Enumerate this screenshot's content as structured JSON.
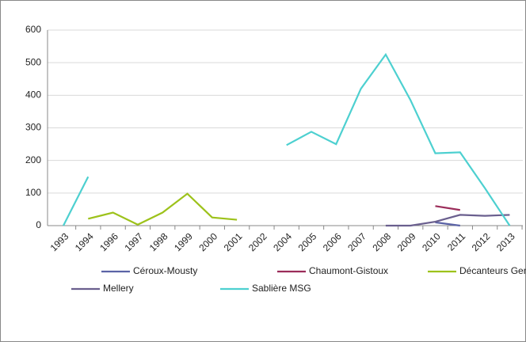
{
  "chart_data": {
    "type": "line",
    "categories": [
      "1993",
      "1994",
      "1996",
      "1997",
      "1998",
      "1999",
      "2000",
      "2001",
      "2002",
      "2004",
      "2005",
      "2006",
      "2007",
      "2008",
      "2009",
      "2010",
      "2011",
      "2012",
      "2013"
    ],
    "series": [
      {
        "name": "Céroux-Mousty",
        "color": "#5b63a6",
        "values": [
          null,
          null,
          null,
          null,
          null,
          null,
          null,
          null,
          null,
          null,
          null,
          null,
          null,
          null,
          null,
          10,
          0,
          null,
          null
        ]
      },
      {
        "name": "Chaumont-Gistoux",
        "color": "#9b2d5a",
        "values": [
          null,
          null,
          null,
          null,
          null,
          null,
          null,
          null,
          null,
          null,
          null,
          null,
          null,
          null,
          null,
          60,
          48,
          null,
          null
        ]
      },
      {
        "name": "Décanteurs Genappe",
        "color": "#9dc21b",
        "values": [
          null,
          21,
          40,
          3,
          40,
          98,
          25,
          18,
          null,
          null,
          null,
          null,
          null,
          null,
          null,
          null,
          null,
          null,
          null
        ]
      },
      {
        "name": "Mellery",
        "color": "#6a5f8e",
        "values": [
          null,
          null,
          null,
          null,
          null,
          null,
          null,
          null,
          null,
          null,
          null,
          null,
          null,
          0,
          0,
          12,
          33,
          30,
          33
        ]
      },
      {
        "name": "Sablière MSG",
        "color": "#4dd0d0",
        "values": [
          0,
          150,
          null,
          null,
          null,
          null,
          null,
          null,
          null,
          247,
          288,
          250,
          420,
          525,
          385,
          222,
          225,
          115,
          0
        ]
      }
    ],
    "ylim": [
      0,
      600
    ],
    "yticks": [
      0,
      100,
      200,
      300,
      400,
      500,
      600
    ],
    "grid": true,
    "legend": "bottom"
  }
}
